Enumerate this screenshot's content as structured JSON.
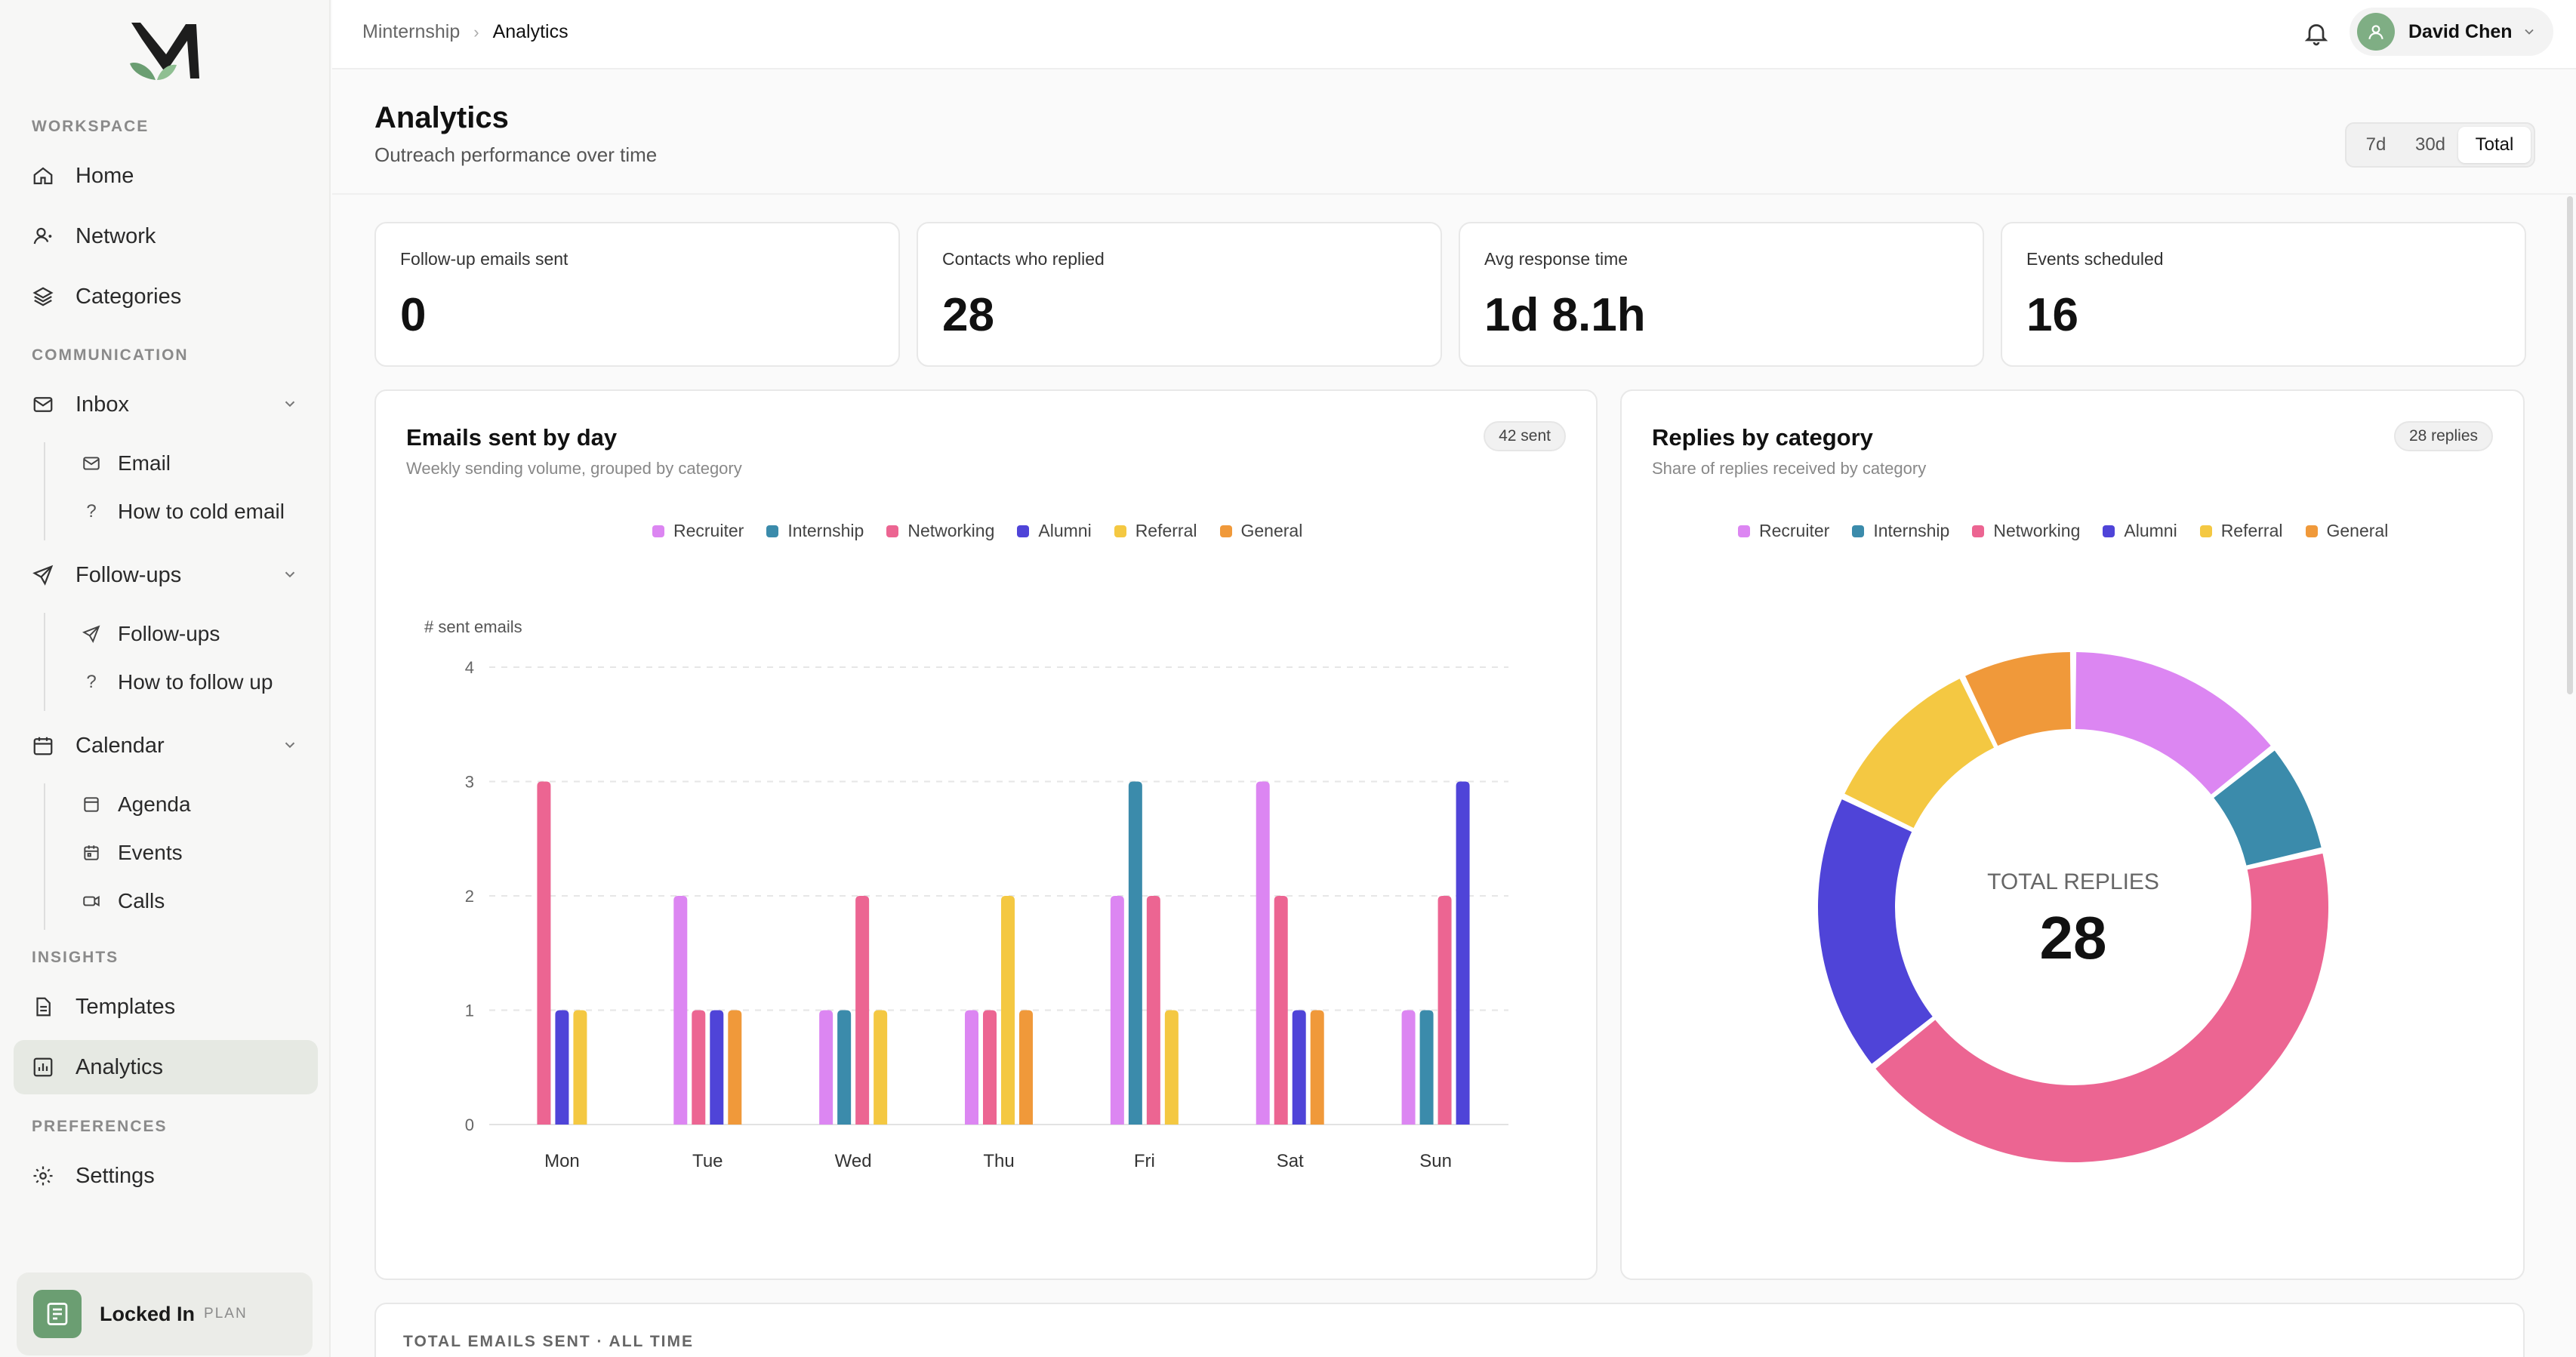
{
  "sidebar": {
    "sections": {
      "workspace": "WORKSPACE",
      "communication": "COMMUNICATION",
      "insights": "INSIGHTS",
      "preferences": "PREFERENCES"
    },
    "items": {
      "home": "Home",
      "network": "Network",
      "categories": "Categories",
      "inbox": "Inbox",
      "followups": "Follow-ups",
      "calendar": "Calendar",
      "templates": "Templates",
      "analytics": "Analytics",
      "settings": "Settings"
    },
    "inbox_sub": {
      "email": "Email",
      "cold": "How to cold email"
    },
    "followups_sub": {
      "followups": "Follow-ups",
      "how": "How to follow up"
    },
    "calendar_sub": {
      "agenda": "Agenda",
      "events": "Events",
      "calls": "Calls"
    },
    "plan": {
      "name": "Locked In",
      "tier": "PLAN"
    }
  },
  "topbar": {
    "breadcrumb": {
      "root": "Minternship",
      "current": "Analytics"
    },
    "user_name": "David Chen"
  },
  "page": {
    "title": "Analytics",
    "subtitle": "Outreach performance over time",
    "ranges": {
      "r7": "7d",
      "r30": "30d",
      "total": "Total"
    },
    "selected_range": "Total"
  },
  "stats": {
    "followups": {
      "label": "Follow-up emails sent",
      "value": "0"
    },
    "replied": {
      "label": "Contacts who replied",
      "value": "28"
    },
    "response": {
      "label": "Avg response time",
      "value": "1d 8.1h"
    },
    "events": {
      "label": "Events scheduled",
      "value": "16"
    }
  },
  "emails_card": {
    "title": "Emails sent by day",
    "subtitle": "Weekly sending volume, grouped by category",
    "pill": "42 sent"
  },
  "replies_card": {
    "title": "Replies by category",
    "subtitle": "Share of replies received by category",
    "pill": "28 replies",
    "center_label": "TOTAL REPLIES",
    "center_value": "28"
  },
  "bottom": {
    "label": "TOTAL EMAILS SENT · ALL TIME"
  },
  "colors": {
    "Recruiter": "#dc86f2",
    "Internship": "#3b8bab",
    "Networking": "#ec6592",
    "Alumni": "#4f44d8",
    "Referral": "#f4c842",
    "General": "#f0993a",
    "accent": "#6b9e72"
  },
  "chart_data": [
    {
      "type": "bar",
      "ylabel": "# sent emails",
      "ylim": [
        0,
        4
      ],
      "yticks": [
        "0",
        "1",
        "2",
        "3",
        "4"
      ],
      "categories": [
        "Mon",
        "Tue",
        "Wed",
        "Thu",
        "Fri",
        "Sat",
        "Sun"
      ],
      "grid": true,
      "legend": "top-center",
      "series": [
        {
          "name": "Recruiter",
          "values": [
            0,
            2,
            1,
            1,
            2,
            3,
            1
          ]
        },
        {
          "name": "Internship",
          "values": [
            0,
            0,
            1,
            0,
            3,
            0,
            1
          ]
        },
        {
          "name": "Networking",
          "values": [
            3,
            1,
            2,
            1,
            2,
            2,
            2
          ]
        },
        {
          "name": "Alumni",
          "values": [
            1,
            1,
            0,
            0,
            0,
            1,
            3
          ]
        },
        {
          "name": "Referral",
          "values": [
            1,
            0,
            1,
            2,
            1,
            0,
            0
          ]
        },
        {
          "name": "General",
          "values": [
            0,
            1,
            0,
            1,
            0,
            1,
            0
          ]
        }
      ]
    },
    {
      "type": "pie",
      "legend": "top-center",
      "categories": [
        "Recruiter",
        "Internship",
        "Networking",
        "Alumni",
        "Referral",
        "General"
      ],
      "values": [
        4,
        2,
        12,
        5,
        3,
        2
      ]
    }
  ]
}
